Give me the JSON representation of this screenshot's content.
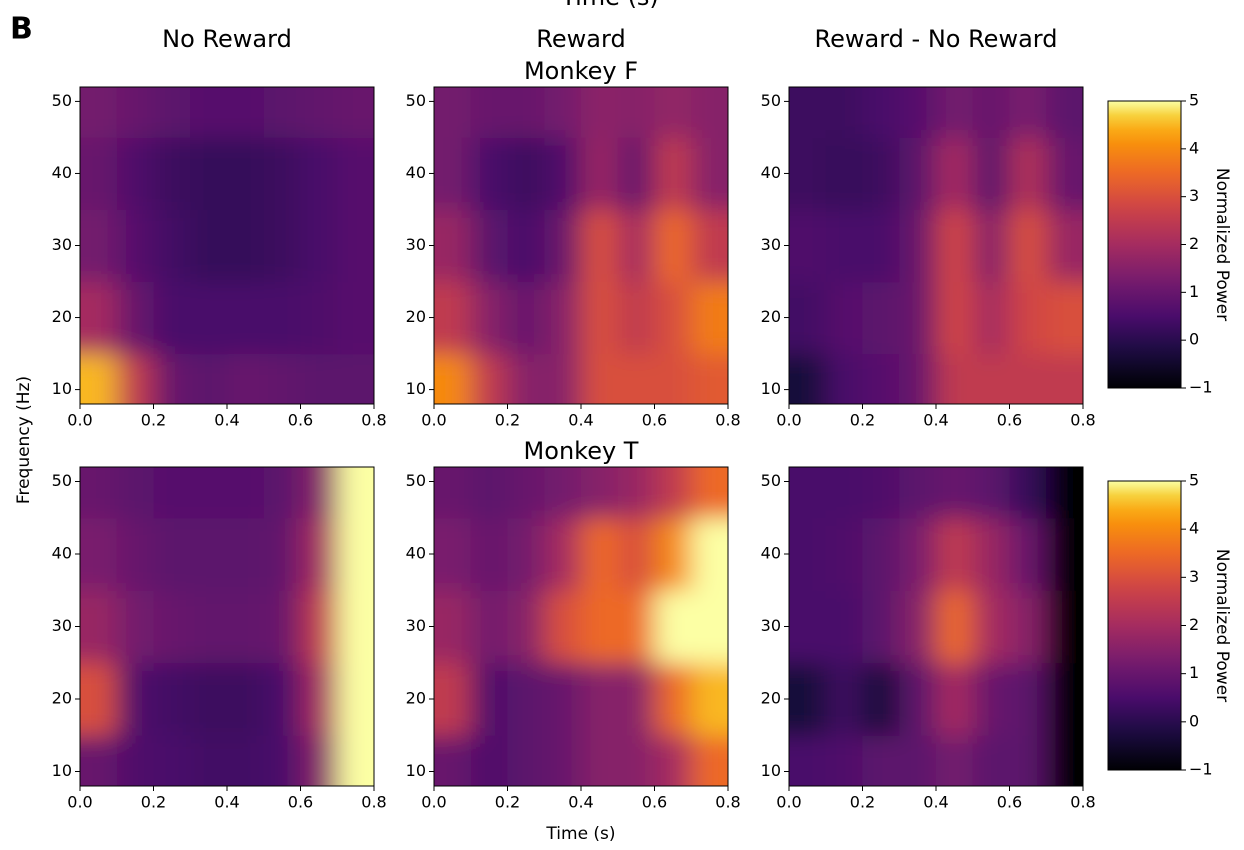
{
  "panel_label": "B",
  "header": "Time (s)",
  "ylabel": "Frequency (Hz)",
  "chart_data": [
    {
      "type": "heatmap",
      "title": "No Reward",
      "colormap": "inferno",
      "zlim": [
        -1,
        5
      ],
      "x": [
        0.05,
        0.15,
        0.25,
        0.35,
        0.45,
        0.55,
        0.65,
        0.75
      ],
      "y": [
        10,
        20,
        30,
        40,
        50
      ],
      "values": [
        [
          4.5,
          2.5,
          1.0,
          0.8,
          1.0,
          0.9,
          0.8,
          0.8
        ],
        [
          2.0,
          1.0,
          0.5,
          0.5,
          0.5,
          0.5,
          0.6,
          0.7
        ],
        [
          1.2,
          0.7,
          0.4,
          0.2,
          0.2,
          0.3,
          0.5,
          0.7
        ],
        [
          1.0,
          0.6,
          0.3,
          0.2,
          0.2,
          0.3,
          0.5,
          0.7
        ],
        [
          1.2,
          1.0,
          0.8,
          0.7,
          0.7,
          0.8,
          0.9,
          1.0
        ]
      ],
      "xlim": [
        0,
        0.8
      ],
      "xticks": [
        {
          "value": 0,
          "label": "0.0"
        },
        0.2,
        0.4,
        0.6,
        0.8
      ],
      "ylim": [
        8,
        52
      ],
      "yticks": [
        10,
        20,
        30,
        40,
        50
      ]
    },
    {
      "type": "heatmap",
      "title": "Reward",
      "row_title": "Monkey F",
      "colormap": "inferno",
      "zlim": [
        -1,
        5
      ],
      "x": [
        0.05,
        0.15,
        0.25,
        0.35,
        0.45,
        0.55,
        0.65,
        0.75
      ],
      "y": [
        10,
        20,
        30,
        40,
        50
      ],
      "values": [
        [
          4.0,
          2.5,
          1.5,
          1.5,
          3.0,
          3.0,
          3.0,
          3.2
        ],
        [
          2.5,
          1.5,
          1.0,
          1.5,
          3.0,
          2.5,
          3.0,
          3.8
        ],
        [
          1.8,
          0.8,
          0.5,
          1.0,
          3.0,
          2.0,
          3.5,
          2.5
        ],
        [
          1.2,
          0.5,
          0.3,
          0.6,
          1.8,
          1.0,
          2.5,
          1.5
        ],
        [
          1.2,
          1.0,
          1.0,
          1.2,
          1.6,
          1.5,
          1.7,
          1.5
        ]
      ],
      "xlim": [
        0,
        0.8
      ],
      "xticks": [
        {
          "value": 0,
          "label": "0.0"
        },
        0.2,
        0.4,
        0.6,
        0.8
      ],
      "ylim": [
        8,
        52
      ],
      "yticks": [
        10,
        20,
        30,
        40,
        50
      ]
    },
    {
      "type": "heatmap",
      "title": "Reward - No Reward",
      "colormap": "inferno",
      "zlim": [
        -1,
        5
      ],
      "x": [
        0.05,
        0.15,
        0.25,
        0.35,
        0.45,
        0.55,
        0.65,
        0.75
      ],
      "y": [
        10,
        20,
        30,
        40,
        50
      ],
      "values": [
        [
          -0.3,
          0.5,
          0.7,
          1.0,
          2.5,
          2.5,
          2.5,
          2.5
        ],
        [
          0.4,
          0.7,
          0.8,
          1.0,
          2.8,
          2.0,
          2.8,
          3.0
        ],
        [
          0.6,
          0.5,
          0.5,
          1.0,
          2.8,
          1.5,
          3.0,
          1.8
        ],
        [
          0.3,
          0.2,
          0.3,
          0.8,
          2.0,
          0.8,
          2.2,
          1.0
        ],
        [
          0.3,
          0.3,
          0.5,
          0.7,
          1.2,
          1.0,
          1.3,
          0.8
        ]
      ],
      "xlim": [
        0,
        0.8
      ],
      "xticks": [
        {
          "value": 0,
          "label": "0.0"
        },
        0.2,
        0.4,
        0.6,
        0.8
      ],
      "ylim": [
        8,
        52
      ],
      "yticks": [
        10,
        20,
        30,
        40,
        50
      ],
      "colorbar": {
        "label": "Normalized Power",
        "zlim": [
          -1,
          5
        ],
        "ticks": [
          {
            "value": -1,
            "label": "−1"
          },
          0,
          1,
          2,
          3,
          4,
          5
        ]
      }
    },
    {
      "type": "heatmap",
      "colormap": "inferno",
      "zlim": [
        -1,
        5
      ],
      "x": [
        0.05,
        0.15,
        0.25,
        0.35,
        0.45,
        0.55,
        0.65,
        0.75
      ],
      "y": [
        10,
        20,
        30,
        40,
        50
      ],
      "values": [
        [
          1.0,
          0.6,
          0.5,
          0.4,
          0.4,
          0.5,
          1.5,
          5
        ],
        [
          3.0,
          0.6,
          0.4,
          0.3,
          0.3,
          0.5,
          2.0,
          5
        ],
        [
          1.8,
          1.2,
          1.0,
          0.9,
          0.9,
          1.0,
          2.5,
          5
        ],
        [
          1.3,
          1.0,
          0.8,
          0.8,
          0.8,
          0.9,
          2.0,
          5
        ],
        [
          1.0,
          0.8,
          0.7,
          0.7,
          0.7,
          0.8,
          1.5,
          5
        ]
      ],
      "xlim": [
        0,
        0.8
      ],
      "xticks": [
        {
          "value": 0,
          "label": "0.0"
        },
        0.2,
        0.4,
        0.6,
        0.8
      ],
      "ylim": [
        8,
        52
      ],
      "yticks": [
        10,
        20,
        30,
        40,
        50
      ]
    },
    {
      "type": "heatmap",
      "row_title": "Monkey T",
      "xlabel": "Time (s)",
      "colormap": "inferno",
      "zlim": [
        -1,
        5
      ],
      "x": [
        0.05,
        0.15,
        0.25,
        0.35,
        0.45,
        0.55,
        0.65,
        0.75
      ],
      "y": [
        10,
        20,
        30,
        40,
        50
      ],
      "values": [
        [
          1.0,
          0.6,
          0.8,
          1.0,
          1.5,
          1.5,
          2.0,
          3.5
        ],
        [
          2.5,
          0.6,
          0.8,
          1.0,
          1.5,
          1.5,
          3.5,
          4.5
        ],
        [
          1.8,
          1.2,
          1.5,
          3.0,
          3.5,
          3.5,
          5.0,
          5.0
        ],
        [
          1.3,
          1.0,
          1.2,
          2.0,
          3.5,
          3.0,
          4.0,
          5.0
        ],
        [
          1.0,
          0.8,
          1.0,
          1.2,
          1.5,
          1.8,
          2.5,
          3.5
        ]
      ],
      "xlim": [
        0,
        0.8
      ],
      "xticks": [
        {
          "value": 0,
          "label": "0.0"
        },
        0.2,
        0.4,
        0.6,
        0.8
      ],
      "ylim": [
        8,
        52
      ],
      "yticks": [
        10,
        20,
        30,
        40,
        50
      ]
    },
    {
      "type": "heatmap",
      "colormap": "inferno",
      "zlim": [
        -1,
        5
      ],
      "x": [
        0.05,
        0.15,
        0.25,
        0.35,
        0.45,
        0.55,
        0.65,
        0.75
      ],
      "y": [
        10,
        20,
        30,
        40,
        50
      ],
      "values": [
        [
          0.5,
          0.6,
          0.8,
          0.8,
          1.2,
          0.8,
          0.8,
          -1
        ],
        [
          -0.3,
          0.3,
          -0.3,
          0.8,
          2.0,
          1.0,
          0.8,
          -1
        ],
        [
          0.5,
          0.5,
          0.8,
          1.5,
          3.5,
          2.0,
          1.5,
          -1
        ],
        [
          0.5,
          0.6,
          0.8,
          1.3,
          2.5,
          1.8,
          1.0,
          -1
        ],
        [
          0.5,
          0.5,
          0.6,
          0.8,
          1.0,
          0.8,
          0.2,
          -1
        ]
      ],
      "xlim": [
        0,
        0.8
      ],
      "xticks": [
        {
          "value": 0,
          "label": "0.0"
        },
        0.2,
        0.4,
        0.6,
        0.8
      ],
      "ylim": [
        8,
        52
      ],
      "yticks": [
        10,
        20,
        30,
        40,
        50
      ],
      "colorbar": {
        "label": "Normalized Power",
        "zlim": [
          -1,
          5
        ],
        "ticks": [
          {
            "value": -1,
            "label": "−1"
          },
          0,
          1,
          2,
          3,
          4,
          5
        ]
      }
    }
  ]
}
